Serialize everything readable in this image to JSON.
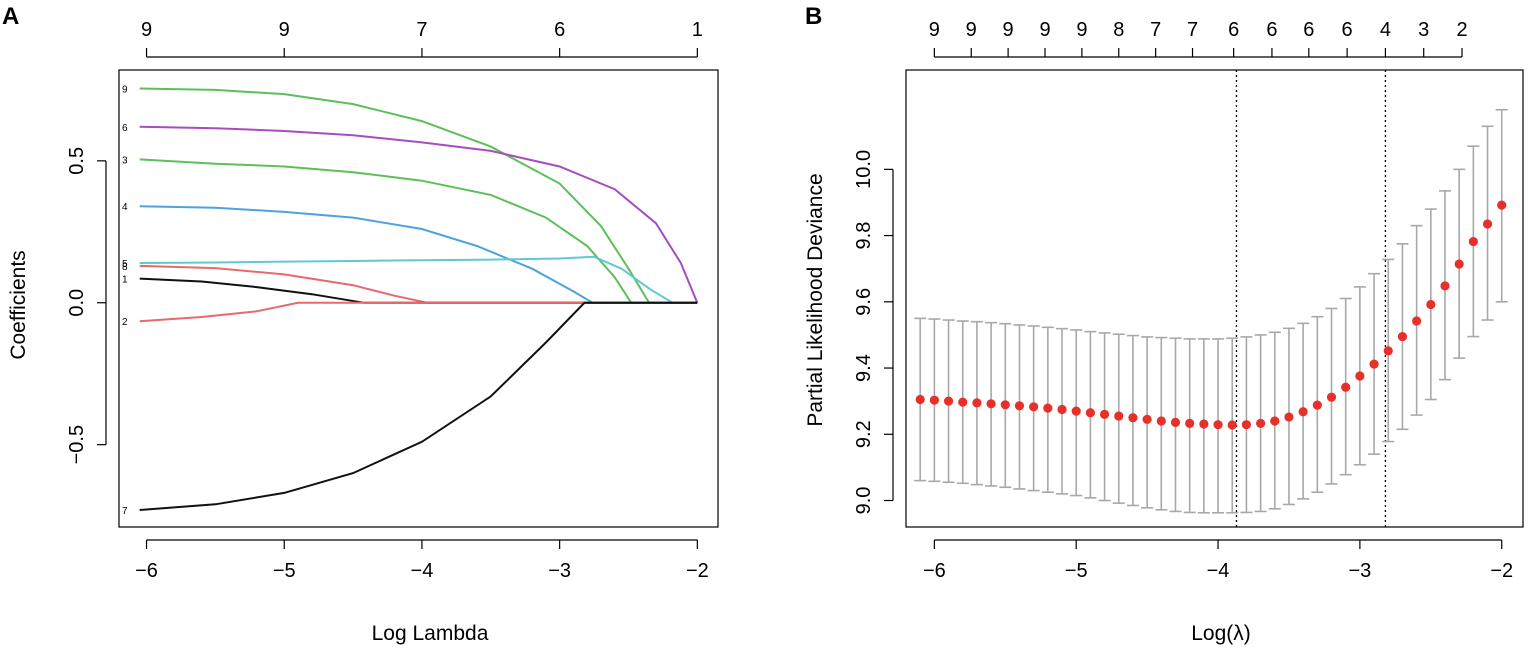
{
  "panels": {
    "a_label": "A",
    "b_label": "B"
  },
  "chart_data": [
    {
      "type": "line",
      "panel": "A",
      "title": "",
      "xlabel": "Log Lambda",
      "ylabel": "Coefficients",
      "xlim": [
        -6.2,
        -1.85
      ],
      "ylim": [
        -0.79,
        0.82
      ],
      "x_ticks": [
        -6,
        -5,
        -4,
        -3,
        -2
      ],
      "x_tick_labels": [
        "−6",
        "−5",
        "−4",
        "−3",
        "−2"
      ],
      "y_ticks": [
        -0.5,
        0.0,
        0.5
      ],
      "y_tick_labels": [
        "−0.5",
        "0.0",
        "0.5"
      ],
      "top_axis": {
        "ticks": [
          -6,
          -5,
          -4,
          -3,
          -2
        ],
        "labels": [
          "9",
          "9",
          "7",
          "6",
          "1"
        ]
      },
      "series": [
        {
          "name": "9",
          "color": "#5cbf5a",
          "points": [
            [
              -6.05,
              0.755
            ],
            [
              -5.5,
              0.75
            ],
            [
              -5,
              0.735
            ],
            [
              -4.5,
              0.7
            ],
            [
              -4,
              0.64
            ],
            [
              -3.5,
              0.55
            ],
            [
              -3,
              0.42
            ],
            [
              -2.7,
              0.27
            ],
            [
              -2.5,
              0.12
            ],
            [
              -2.35,
              0.0
            ],
            [
              -2,
              0.0
            ]
          ]
        },
        {
          "name": "6",
          "color": "#a64dbf",
          "points": [
            [
              -6.05,
              0.62
            ],
            [
              -5.5,
              0.615
            ],
            [
              -5,
              0.605
            ],
            [
              -4.5,
              0.59
            ],
            [
              -4,
              0.565
            ],
            [
              -3.5,
              0.535
            ],
            [
              -3,
              0.48
            ],
            [
              -2.6,
              0.4
            ],
            [
              -2.3,
              0.28
            ],
            [
              -2.12,
              0.14
            ],
            [
              -2,
              0.0
            ]
          ]
        },
        {
          "name": "3",
          "color": "#5cbf5a",
          "points": [
            [
              -6.05,
              0.505
            ],
            [
              -5.5,
              0.49
            ],
            [
              -5,
              0.48
            ],
            [
              -4.5,
              0.46
            ],
            [
              -4,
              0.43
            ],
            [
              -3.5,
              0.38
            ],
            [
              -3.1,
              0.3
            ],
            [
              -2.8,
              0.2
            ],
            [
              -2.6,
              0.09
            ],
            [
              -2.48,
              0.0
            ],
            [
              -2,
              0.0
            ]
          ]
        },
        {
          "name": "4",
          "color": "#4ea3dc",
          "points": [
            [
              -6.05,
              0.34
            ],
            [
              -5.5,
              0.335
            ],
            [
              -5,
              0.32
            ],
            [
              -4.5,
              0.3
            ],
            [
              -4,
              0.26
            ],
            [
              -3.6,
              0.2
            ],
            [
              -3.2,
              0.12
            ],
            [
              -2.9,
              0.04
            ],
            [
              -2.76,
              0.0
            ],
            [
              -2,
              0.0
            ]
          ]
        },
        {
          "name": "5",
          "color": "#5fc8d2",
          "points": [
            [
              -6.05,
              0.14
            ],
            [
              -5.5,
              0.142
            ],
            [
              -5,
              0.145
            ],
            [
              -4.5,
              0.147
            ],
            [
              -4,
              0.15
            ],
            [
              -3.5,
              0.152
            ],
            [
              -3,
              0.156
            ],
            [
              -2.75,
              0.162
            ],
            [
              -2.55,
              0.12
            ],
            [
              -2.35,
              0.05
            ],
            [
              -2.18,
              0.0
            ],
            [
              -2,
              0.0
            ]
          ]
        },
        {
          "name": "8",
          "color": "#e8686e",
          "points": [
            [
              -6.05,
              0.13
            ],
            [
              -5.5,
              0.122
            ],
            [
              -5,
              0.1
            ],
            [
              -4.5,
              0.062
            ],
            [
              -4.2,
              0.025
            ],
            [
              -3.96,
              0.0
            ],
            [
              -2,
              0.0
            ]
          ]
        },
        {
          "name": "1",
          "color": "#111111",
          "points": [
            [
              -6.05,
              0.085
            ],
            [
              -5.6,
              0.075
            ],
            [
              -5.2,
              0.055
            ],
            [
              -4.8,
              0.03
            ],
            [
              -4.42,
              0.0
            ],
            [
              -2,
              0.0
            ]
          ]
        },
        {
          "name": "2",
          "color": "#e8686e",
          "points": [
            [
              -6.05,
              -0.065
            ],
            [
              -5.6,
              -0.05
            ],
            [
              -5.2,
              -0.03
            ],
            [
              -4.9,
              0.0
            ],
            [
              -2,
              0.0
            ]
          ]
        },
        {
          "name": "7",
          "color": "#111111",
          "points": [
            [
              -6.05,
              -0.73
            ],
            [
              -5.5,
              -0.71
            ],
            [
              -5,
              -0.67
            ],
            [
              -4.5,
              -0.6
            ],
            [
              -4,
              -0.49
            ],
            [
              -3.5,
              -0.33
            ],
            [
              -3.1,
              -0.14
            ],
            [
              -2.82,
              0.0
            ],
            [
              -2,
              0.0
            ]
          ]
        }
      ]
    },
    {
      "type": "scatter",
      "panel": "B",
      "title": "",
      "xlabel": "Log(λ)",
      "ylabel": "Partial Likelihood Deviance",
      "xlim": [
        -6.2,
        -1.85
      ],
      "ylim": [
        8.92,
        10.3
      ],
      "x_ticks": [
        -6,
        -5,
        -4,
        -3,
        -2
      ],
      "x_tick_labels": [
        "−6",
        "−5",
        "−4",
        "−3",
        "−2"
      ],
      "y_ticks": [
        9.0,
        9.2,
        9.4,
        9.6,
        9.8,
        10.0
      ],
      "y_tick_labels": [
        "9.0",
        "9.2",
        "9.4",
        "9.6",
        "9.8",
        "10.0"
      ],
      "top_axis": {
        "ticks": [
          -6.0,
          -5.74,
          -5.48,
          -5.22,
          -4.96,
          -4.7,
          -4.44,
          -4.18,
          -3.89,
          -3.62,
          -3.36,
          -3.09,
          -2.82,
          -2.55,
          -2.28
        ],
        "labels": [
          "9",
          "9",
          "9",
          "9",
          "9",
          "8",
          "7",
          "7",
          "6",
          "6",
          "6",
          "6",
          "4",
          "3",
          "2"
        ]
      },
      "vlines": [
        -3.87,
        -2.82
      ],
      "colors": {
        "point": "#e8302a",
        "errorbar": "#a8a8a8"
      },
      "x": [
        -6.1,
        -6.0,
        -5.9,
        -5.8,
        -5.7,
        -5.6,
        -5.5,
        -5.4,
        -5.3,
        -5.2,
        -5.1,
        -5.0,
        -4.9,
        -4.8,
        -4.7,
        -4.6,
        -4.5,
        -4.4,
        -4.3,
        -4.2,
        -4.1,
        -4.0,
        -3.9,
        -3.8,
        -3.7,
        -3.6,
        -3.5,
        -3.4,
        -3.3,
        -3.2,
        -3.1,
        -3.0,
        -2.9,
        -2.8,
        -2.7,
        -2.6,
        -2.5,
        -2.4,
        -2.3,
        -2.2,
        -2.1,
        -2.0
      ],
      "y": [
        9.305,
        9.303,
        9.3,
        9.297,
        9.295,
        9.292,
        9.289,
        9.286,
        9.283,
        9.279,
        9.275,
        9.27,
        9.265,
        9.26,
        9.255,
        9.25,
        9.245,
        9.24,
        9.236,
        9.233,
        9.231,
        9.229,
        9.228,
        9.229,
        9.233,
        9.24,
        9.252,
        9.268,
        9.288,
        9.312,
        9.342,
        9.376,
        9.412,
        9.452,
        9.495,
        9.542,
        9.592,
        9.648,
        9.714,
        9.782,
        9.835,
        9.892
      ],
      "lower": [
        9.06,
        9.058,
        9.055,
        9.052,
        9.048,
        9.044,
        9.04,
        9.035,
        9.03,
        9.025,
        9.02,
        9.015,
        9.008,
        9.0,
        8.992,
        8.985,
        8.978,
        8.972,
        8.967,
        8.964,
        8.963,
        8.963,
        8.963,
        8.964,
        8.967,
        8.975,
        8.988,
        9.005,
        9.025,
        9.05,
        9.078,
        9.108,
        9.14,
        9.178,
        9.215,
        9.258,
        9.305,
        9.365,
        9.43,
        9.495,
        9.545,
        9.6
      ],
      "upper": [
        9.55,
        9.548,
        9.545,
        9.542,
        9.54,
        9.537,
        9.534,
        9.53,
        9.527,
        9.523,
        9.519,
        9.515,
        9.51,
        9.506,
        9.502,
        9.498,
        9.494,
        9.492,
        9.49,
        9.488,
        9.488,
        9.488,
        9.49,
        9.494,
        9.5,
        9.508,
        9.52,
        9.535,
        9.555,
        9.58,
        9.61,
        9.645,
        9.685,
        9.728,
        9.775,
        9.83,
        9.88,
        9.935,
        10.0,
        10.07,
        10.13,
        10.18
      ]
    }
  ]
}
